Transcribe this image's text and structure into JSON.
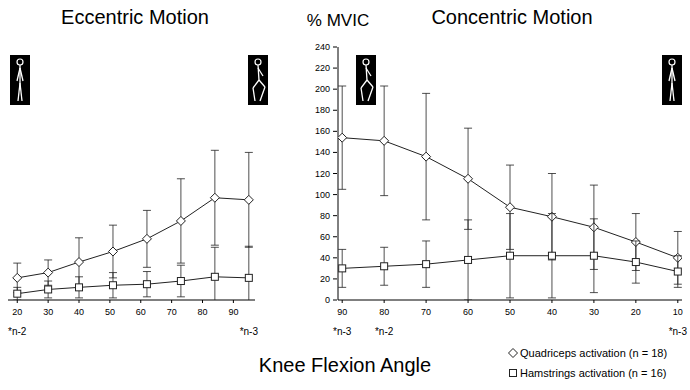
{
  "chart_data": [
    {
      "type": "line",
      "title": "Eccentric Motion",
      "x_label": "Knee Flexion Angle",
      "x": [
        20,
        30,
        40,
        51,
        62,
        73,
        84,
        95
      ],
      "xlim": [
        17,
        97
      ],
      "xticks": [
        20,
        30,
        40,
        50,
        60,
        70,
        80,
        90
      ],
      "ylim": [
        0,
        240
      ],
      "tick_labels": "x",
      "series": [
        {
          "color": "#222222",
          "marker": "diamond",
          "values": [
            21,
            26,
            36,
            46,
            58,
            75,
            97,
            95
          ],
          "errors": [
            14,
            12,
            23,
            25,
            27,
            40,
            45,
            45
          ]
        },
        {
          "color": "#222222",
          "marker": "square",
          "values": [
            6,
            10,
            12,
            14,
            15,
            18,
            22,
            21
          ],
          "errors": [
            6,
            8,
            10,
            12,
            12,
            15,
            28,
            30
          ]
        }
      ],
      "annotations": [
        {
          "text": "*n-2",
          "x": 20
        },
        {
          "text": "*n-3",
          "x": 95
        }
      ]
    },
    {
      "type": "line",
      "title": "Concentric Motion",
      "y_label": "% MVIC",
      "x": [
        90,
        80,
        70,
        60,
        50,
        40,
        30,
        20,
        10
      ],
      "xlim": [
        91,
        9
      ],
      "xticks": [
        90,
        80,
        70,
        60,
        50,
        40,
        30,
        20,
        10
      ],
      "ylim": [
        0,
        240
      ],
      "yticks": [
        0,
        20,
        40,
        60,
        80,
        100,
        120,
        140,
        160,
        180,
        200,
        220,
        240
      ],
      "legend": "lower right",
      "series": [
        {
          "name": "Quadriceps activation (n = 18)",
          "color": "#222222",
          "marker": "diamond",
          "values": [
            154,
            151,
            136,
            115,
            88,
            79,
            69,
            55,
            40
          ],
          "errors": [
            49,
            52,
            60,
            48,
            40,
            41,
            40,
            27,
            25
          ]
        },
        {
          "name": "Hamstrings activation (n = 16)",
          "color": "#222222",
          "marker": "square",
          "values": [
            30,
            32,
            34,
            38,
            42,
            42,
            42,
            36,
            27
          ],
          "errors": [
            18,
            18,
            22,
            38,
            40,
            40,
            35,
            20,
            15
          ]
        }
      ],
      "annotations": [
        {
          "text": "*n-3",
          "x": 90
        },
        {
          "text": "*n-2",
          "x": 80
        },
        {
          "text": "*n-3",
          "x": 10
        }
      ]
    }
  ]
}
